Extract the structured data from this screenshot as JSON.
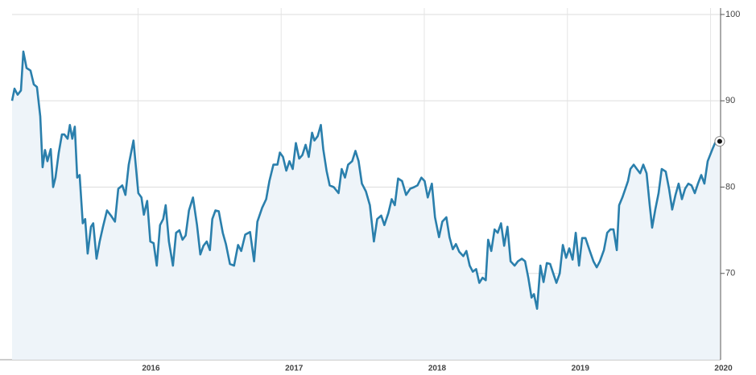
{
  "chart_data": {
    "type": "area",
    "color": "#2a7fac",
    "fill": "#eef4f9",
    "grid": true,
    "end_marker": true,
    "xlim": [
      2015.12,
      2020.07
    ],
    "xticks": [
      2016,
      2017,
      2018,
      2019,
      2020
    ],
    "ylim": [
      60,
      100
    ],
    "yticks": [
      70,
      80,
      90,
      100
    ],
    "x": [
      2015.12,
      2015.137,
      2015.159,
      2015.182,
      2015.199,
      2015.221,
      2015.249,
      2015.272,
      2015.294,
      2015.317,
      2015.333,
      2015.35,
      2015.367,
      2015.39,
      2015.407,
      2015.423,
      2015.446,
      2015.468,
      2015.485,
      2015.508,
      2015.524,
      2015.541,
      2015.558,
      2015.575,
      2015.592,
      2015.614,
      2015.631,
      2015.648,
      2015.671,
      2015.687,
      2015.71,
      2015.732,
      2015.755,
      2015.783,
      2015.811,
      2015.839,
      2015.862,
      2015.89,
      2015.912,
      2015.935,
      2015.968,
      2016.002,
      2016.024,
      2016.041,
      2016.064,
      2016.086,
      2016.109,
      2016.131,
      2016.154,
      2016.176,
      2016.193,
      2016.216,
      2016.244,
      2016.266,
      2016.289,
      2016.311,
      2016.333,
      2016.356,
      2016.384,
      2016.412,
      2016.435,
      2016.457,
      2016.48,
      2016.502,
      2016.519,
      2016.541,
      2016.564,
      2016.592,
      2016.614,
      2016.642,
      2016.671,
      2016.699,
      2016.721,
      2016.749,
      2016.783,
      2016.811,
      2016.834,
      2016.867,
      2016.895,
      2016.918,
      2016.946,
      2016.974,
      2016.991,
      2017.013,
      2017.036,
      2017.058,
      2017.081,
      2017.103,
      2017.126,
      2017.148,
      2017.171,
      2017.193,
      2017.216,
      2017.232,
      2017.255,
      2017.277,
      2017.294,
      2017.317,
      2017.339,
      2017.367,
      2017.401,
      2017.423,
      2017.446,
      2017.468,
      2017.496,
      2017.519,
      2017.541,
      2017.564,
      2017.592,
      2017.62,
      2017.648,
      2017.671,
      2017.699,
      2017.721,
      2017.749,
      2017.772,
      2017.794,
      2017.817,
      2017.845,
      2017.873,
      2017.901,
      2017.929,
      2017.952,
      2017.98,
      2018.002,
      2018.024,
      2018.053,
      2018.075,
      2018.103,
      2018.126,
      2018.154,
      2018.176,
      2018.199,
      2018.221,
      2018.244,
      2018.272,
      2018.294,
      2018.317,
      2018.339,
      2018.362,
      2018.384,
      2018.407,
      2018.429,
      2018.446,
      2018.468,
      2018.491,
      2018.513,
      2018.536,
      2018.558,
      2018.581,
      2018.603,
      2018.631,
      2018.654,
      2018.682,
      2018.704,
      2018.727,
      2018.749,
      2018.766,
      2018.788,
      2018.811,
      2018.833,
      2018.856,
      2018.879,
      2018.901,
      2018.923,
      2018.946,
      2018.968,
      2018.991,
      2019.013,
      2019.036,
      2019.058,
      2019.081,
      2019.103,
      2019.126,
      2019.154,
      2019.182,
      2019.205,
      2019.227,
      2019.255,
      2019.278,
      2019.3,
      2019.322,
      2019.345,
      2019.361,
      2019.384,
      2019.407,
      2019.423,
      2019.44,
      2019.463,
      2019.485,
      2019.508,
      2019.53,
      2019.553,
      2019.575,
      2019.592,
      2019.614,
      2019.637,
      2019.659,
      2019.687,
      2019.71,
      2019.732,
      2019.755,
      2019.777,
      2019.8,
      2019.822,
      2019.845,
      2019.867,
      2019.89,
      2019.912,
      2019.935,
      2019.957,
      2019.98,
      2020.013,
      2020.036,
      2020.064
    ],
    "values": [
      90,
      91.4,
      90.7,
      91.2,
      95.7,
      93.8,
      93.5,
      91.9,
      91.6,
      88.2,
      82.3,
      84.3,
      83,
      84.4,
      80,
      81.1,
      84,
      86.1,
      86.1,
      85.6,
      87.2,
      85.6,
      87,
      81.1,
      81.4,
      75.8,
      76.3,
      72.3,
      75.4,
      75.8,
      71.7,
      73.7,
      75.4,
      77.3,
      76.7,
      76,
      79.8,
      80.2,
      79.1,
      82.6,
      85.4,
      79.3,
      78.8,
      76.8,
      78.4,
      73.7,
      73.5,
      70.9,
      75.6,
      76.3,
      77.9,
      73.7,
      70.9,
      74.7,
      75,
      73.9,
      74.4,
      77.3,
      78.8,
      75.6,
      72.2,
      73.2,
      73.7,
      72.7,
      76.3,
      77.3,
      77.2,
      74.7,
      73.4,
      71.1,
      70.9,
      73.3,
      72.6,
      74.5,
      74.8,
      71.4,
      76,
      77.6,
      78.6,
      80.7,
      82.6,
      82.6,
      84,
      83.5,
      81.9,
      83,
      82.1,
      85.1,
      83.3,
      83.7,
      84.9,
      83.5,
      86.3,
      85.4,
      85.9,
      87.2,
      84.4,
      81.9,
      80.2,
      80,
      79.3,
      82.1,
      81.1,
      82.6,
      83,
      84.2,
      83,
      80.4,
      79.5,
      77.9,
      73.7,
      76.3,
      76.7,
      75.6,
      77,
      78.6,
      77.9,
      81,
      80.7,
      79.1,
      79.8,
      80,
      80.2,
      81.1,
      80.7,
      78.8,
      80.4,
      76.5,
      74.2,
      76,
      76.5,
      74.2,
      72.8,
      73.4,
      72.5,
      72,
      72.6,
      70.9,
      70.2,
      70.5,
      68.9,
      69.5,
      69.2,
      73.9,
      72.6,
      75.1,
      74.7,
      75.8,
      73.2,
      75.4,
      71.4,
      70.9,
      71.4,
      71.7,
      71.4,
      69.5,
      67.2,
      67.6,
      65.9,
      70.9,
      69,
      71.2,
      71.1,
      70,
      68.9,
      70,
      73.3,
      71.8,
      72.9,
      71.6,
      74.7,
      70.9,
      74.1,
      74.1,
      72.7,
      71.4,
      70.7,
      71.4,
      72.7,
      74.7,
      75.1,
      75.1,
      72.7,
      77.9,
      78.8,
      79.9,
      80.7,
      82.1,
      82.6,
      82.1,
      81.6,
      82.6,
      81.6,
      77.9,
      75.3,
      77.4,
      79.3,
      82.1,
      81.8,
      79.8,
      77.4,
      79.1,
      80.4,
      78.6,
      79.8,
      80.4,
      80.2,
      79.3,
      80.4,
      81.4,
      80.4,
      83,
      84.4,
      85.3,
      85.3
    ]
  }
}
